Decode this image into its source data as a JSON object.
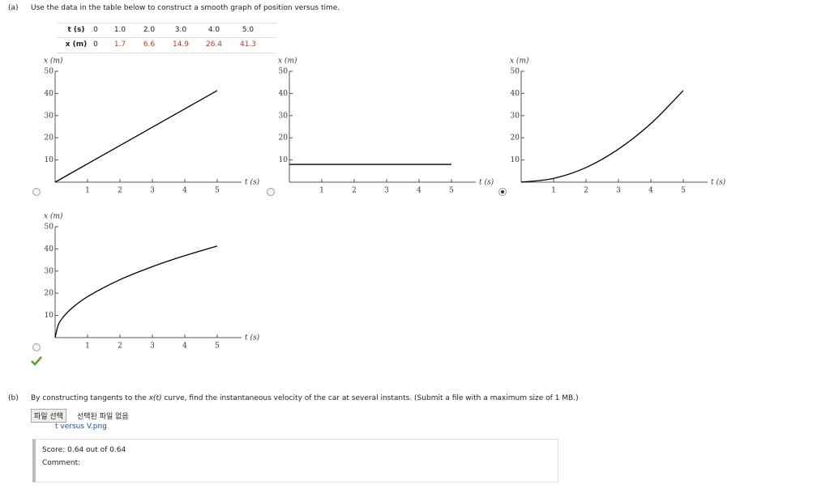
{
  "part_a": {
    "label": "(a)",
    "prompt": "Use the data in the table below to construct a smooth graph of position versus time.",
    "table": {
      "rows": [
        [
          "t (s)",
          "0",
          "1.0",
          "2.0",
          "3.0",
          "4.0",
          "5.0"
        ],
        [
          "x (m)",
          "0",
          "1.7",
          "6.6",
          "14.9",
          "26.4",
          "41.3"
        ]
      ]
    },
    "selected_graph": 2,
    "graphs": [
      {
        "type": "line",
        "y_label": "x (m)",
        "x_label": "t (s)",
        "xlim": [
          0,
          5.75
        ],
        "ylim": [
          0,
          50
        ],
        "xticks": [
          1,
          2,
          3,
          4,
          5
        ],
        "yticks": [
          10,
          20,
          30,
          40,
          50
        ],
        "color": "#000000",
        "x": [
          0,
          5
        ],
        "values": [
          0,
          41.3
        ]
      },
      {
        "type": "line",
        "y_label": "x (m)",
        "x_label": "t (s)",
        "xlim": [
          0,
          5.75
        ],
        "ylim": [
          0,
          50
        ],
        "xticks": [
          1,
          2,
          3,
          4,
          5
        ],
        "yticks": [
          10,
          20,
          30,
          40,
          50
        ],
        "color": "#000000",
        "x": [
          0,
          5
        ],
        "values": [
          8,
          8
        ]
      },
      {
        "type": "line",
        "y_label": "x (m)",
        "x_label": "t (s)",
        "xlim": [
          0,
          5.75
        ],
        "ylim": [
          0,
          50
        ],
        "xticks": [
          1,
          2,
          3,
          4,
          5
        ],
        "yticks": [
          10,
          20,
          30,
          40,
          50
        ],
        "color": "#000000",
        "x": [
          0,
          1,
          2,
          3,
          4,
          5
        ],
        "values": [
          0,
          1.7,
          6.6,
          14.9,
          26.4,
          41.3
        ]
      },
      {
        "type": "line",
        "y_label": "x (m)",
        "x_label": "t (s)",
        "xlim": [
          0,
          5.75
        ],
        "ylim": [
          0,
          50
        ],
        "xticks": [
          1,
          2,
          3,
          4,
          5
        ],
        "yticks": [
          10,
          20,
          30,
          40,
          50
        ],
        "color": "#000000",
        "x": [
          0,
          0.1,
          0.25,
          0.5,
          1,
          2,
          3,
          4,
          5
        ],
        "values": [
          0,
          5.84,
          9.23,
          13.06,
          18.47,
          26.12,
          31.99,
          36.94,
          41.3
        ]
      }
    ]
  },
  "part_b": {
    "label": "(b)",
    "prompt": [
      "By constructing tangents to the ",
      "x(t)",
      " curve, find the instantaneous velocity of the car at several instants. (Submit a file with a maximum size of 1 MB.)"
    ],
    "file_button": "파일 선택",
    "file_status": "선택된 파일 없음",
    "file_link": "t versus V.png",
    "score_label": "Score:",
    "score": "0.64 out of 0.64",
    "comment_label": "Comment:"
  }
}
